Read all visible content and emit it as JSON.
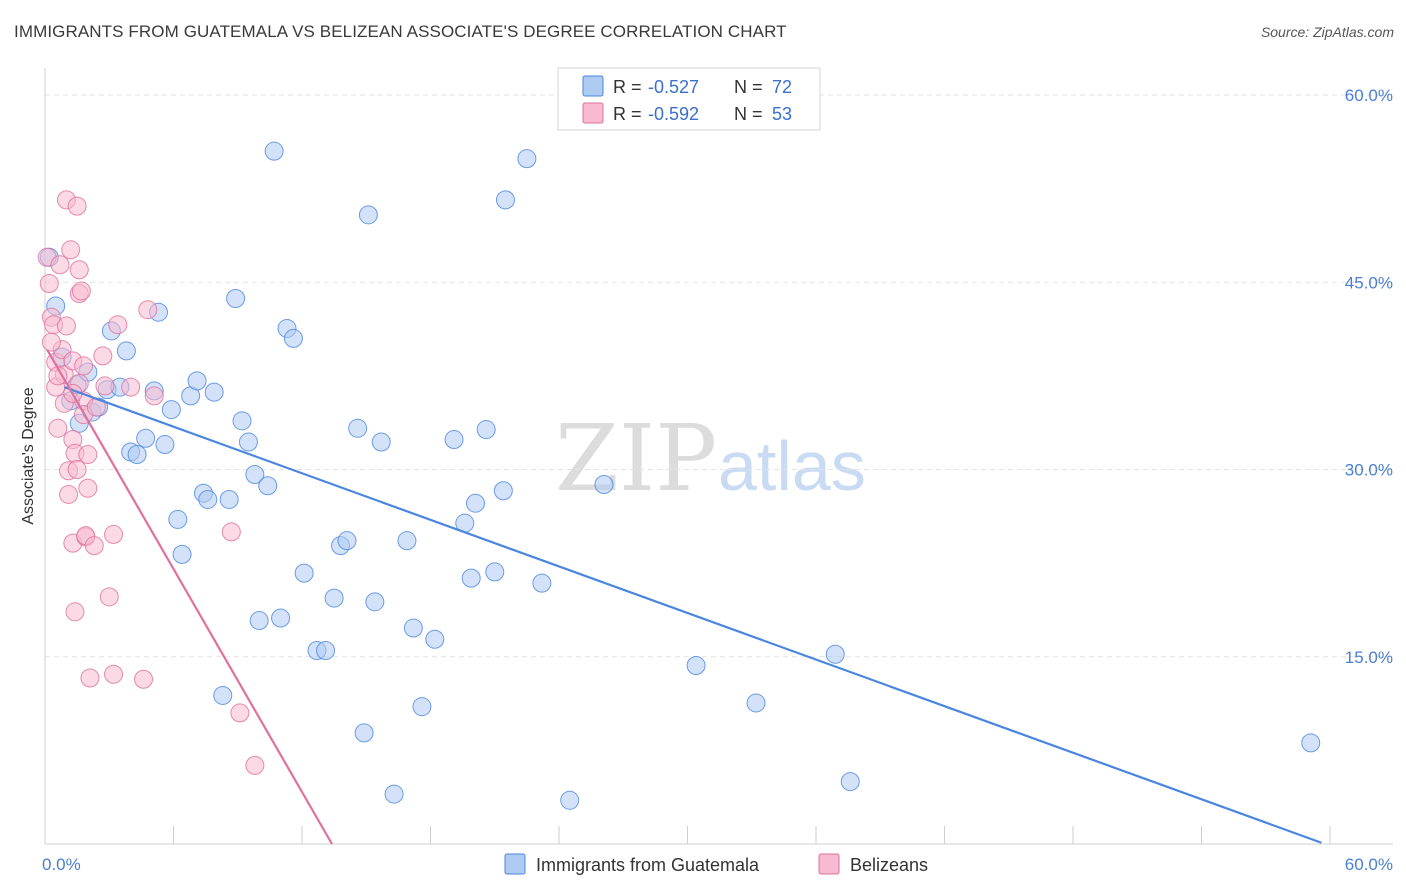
{
  "title": "IMMIGRANTS FROM GUATEMALA VS BELIZEAN ASSOCIATE'S DEGREE CORRELATION CHART",
  "source": "Source: ZipAtlas.com",
  "watermark": {
    "zip": "ZIP",
    "atlas": "atlas"
  },
  "colors": {
    "blue": "#4a86e0",
    "blue_fill": "#aecbf2",
    "pink": "#e0709c",
    "pink_fill": "#f7bad0",
    "axis_text": "#4a7fd1"
  },
  "legend": {
    "rows": [
      {
        "r_label": "R = ",
        "r_value": "-0.527",
        "n_label": "N = ",
        "n_value": "72"
      },
      {
        "r_label": "R = ",
        "r_value": "-0.592",
        "n_label": "N = ",
        "n_value": "53"
      }
    ]
  },
  "chart_data": {
    "type": "scatter",
    "title": "IMMIGRANTS FROM GUATEMALA VS BELIZEAN ASSOCIATE'S DEGREE CORRELATION CHART",
    "xlabel": "",
    "ylabel": "Associate's Degree",
    "xlim": [
      0,
      60
    ],
    "ylim": [
      0,
      60
    ],
    "x_tick_labels": [
      "0.0%",
      "60.0%"
    ],
    "y_tick_labels": [
      "15.0%",
      "30.0%",
      "45.0%",
      "60.0%"
    ],
    "y_ticks": [
      15,
      30,
      45,
      60
    ],
    "grid": true,
    "legend_position": "top-center",
    "series": [
      {
        "name": "Immigrants from Guatemala",
        "color": "#4a86e0",
        "trend": {
          "x": [
            0.9,
            59.6
          ],
          "y": [
            36.6,
            0.1
          ]
        },
        "points": [
          [
            0.2,
            47.0
          ],
          [
            0.5,
            43.1
          ],
          [
            0.8,
            39.0
          ],
          [
            1.2,
            35.5
          ],
          [
            1.5,
            36.8
          ],
          [
            1.6,
            33.7
          ],
          [
            2.0,
            37.8
          ],
          [
            2.2,
            34.6
          ],
          [
            2.5,
            35.0
          ],
          [
            2.9,
            36.4
          ],
          [
            3.1,
            41.1
          ],
          [
            3.5,
            36.6
          ],
          [
            3.8,
            39.5
          ],
          [
            4.0,
            31.4
          ],
          [
            4.3,
            31.2
          ],
          [
            4.7,
            32.5
          ],
          [
            5.1,
            36.3
          ],
          [
            5.3,
            42.6
          ],
          [
            5.6,
            32.0
          ],
          [
            5.9,
            34.8
          ],
          [
            6.2,
            26.0
          ],
          [
            6.4,
            23.2
          ],
          [
            6.8,
            35.9
          ],
          [
            7.1,
            37.1
          ],
          [
            7.4,
            28.1
          ],
          [
            7.6,
            27.6
          ],
          [
            7.9,
            36.2
          ],
          [
            8.3,
            11.9
          ],
          [
            8.6,
            27.6
          ],
          [
            8.9,
            43.7
          ],
          [
            9.2,
            33.9
          ],
          [
            9.5,
            32.2
          ],
          [
            9.8,
            29.6
          ],
          [
            10.0,
            17.9
          ],
          [
            10.4,
            28.7
          ],
          [
            10.7,
            55.5
          ],
          [
            11.0,
            18.1
          ],
          [
            11.3,
            41.3
          ],
          [
            11.6,
            40.5
          ],
          [
            12.1,
            21.7
          ],
          [
            12.7,
            15.5
          ],
          [
            13.1,
            15.5
          ],
          [
            13.5,
            19.7
          ],
          [
            13.8,
            23.9
          ],
          [
            14.1,
            24.3
          ],
          [
            14.6,
            33.3
          ],
          [
            14.9,
            8.9
          ],
          [
            15.1,
            50.4
          ],
          [
            15.4,
            19.4
          ],
          [
            15.7,
            32.2
          ],
          [
            16.3,
            4.0
          ],
          [
            16.9,
            24.3
          ],
          [
            17.2,
            17.3
          ],
          [
            17.6,
            11.0
          ],
          [
            18.2,
            16.4
          ],
          [
            19.1,
            32.4
          ],
          [
            19.6,
            25.7
          ],
          [
            19.9,
            21.3
          ],
          [
            20.1,
            27.3
          ],
          [
            20.6,
            33.2
          ],
          [
            21.0,
            21.8
          ],
          [
            21.4,
            28.3
          ],
          [
            21.5,
            51.6
          ],
          [
            22.5,
            54.9
          ],
          [
            23.2,
            20.9
          ],
          [
            24.5,
            3.5
          ],
          [
            26.1,
            28.8
          ],
          [
            30.4,
            14.3
          ],
          [
            33.2,
            11.3
          ],
          [
            36.9,
            15.2
          ],
          [
            37.6,
            5.0
          ],
          [
            59.1,
            8.1
          ]
        ]
      },
      {
        "name": "Belizeans",
        "color": "#e0709c",
        "trend": {
          "x": [
            0.1,
            13.4
          ],
          "y": [
            39.6,
            0.0
          ]
        },
        "points": [
          [
            0.1,
            47.0
          ],
          [
            0.2,
            44.9
          ],
          [
            0.3,
            42.2
          ],
          [
            0.4,
            41.6
          ],
          [
            0.5,
            38.6
          ],
          [
            0.5,
            36.6
          ],
          [
            0.6,
            33.3
          ],
          [
            0.7,
            46.4
          ],
          [
            0.8,
            39.6
          ],
          [
            0.9,
            37.6
          ],
          [
            0.9,
            35.3
          ],
          [
            1.0,
            51.6
          ],
          [
            1.0,
            41.5
          ],
          [
            1.1,
            28.0
          ],
          [
            1.1,
            29.9
          ],
          [
            1.2,
            47.6
          ],
          [
            1.3,
            38.7
          ],
          [
            1.3,
            32.4
          ],
          [
            1.3,
            24.1
          ],
          [
            1.4,
            31.3
          ],
          [
            1.4,
            18.6
          ],
          [
            1.5,
            51.1
          ],
          [
            1.5,
            30.0
          ],
          [
            1.6,
            46.0
          ],
          [
            1.6,
            36.9
          ],
          [
            1.6,
            44.1
          ],
          [
            1.7,
            44.3
          ],
          [
            1.8,
            38.3
          ],
          [
            1.8,
            35.5
          ],
          [
            1.8,
            34.4
          ],
          [
            1.9,
            24.6
          ],
          [
            1.9,
            24.7
          ],
          [
            2.0,
            31.2
          ],
          [
            2.0,
            28.5
          ],
          [
            2.1,
            13.3
          ],
          [
            2.4,
            35.0
          ],
          [
            2.3,
            23.9
          ],
          [
            2.7,
            39.1
          ],
          [
            2.8,
            36.7
          ],
          [
            3.0,
            19.8
          ],
          [
            3.2,
            13.6
          ],
          [
            3.2,
            24.8
          ],
          [
            3.4,
            41.6
          ],
          [
            4.0,
            36.6
          ],
          [
            4.6,
            13.2
          ],
          [
            4.8,
            42.8
          ],
          [
            5.1,
            35.9
          ],
          [
            8.7,
            25.0
          ],
          [
            9.1,
            10.5
          ],
          [
            9.8,
            6.3
          ],
          [
            0.3,
            40.2
          ],
          [
            0.6,
            37.5
          ],
          [
            1.3,
            36.1
          ]
        ]
      }
    ]
  }
}
